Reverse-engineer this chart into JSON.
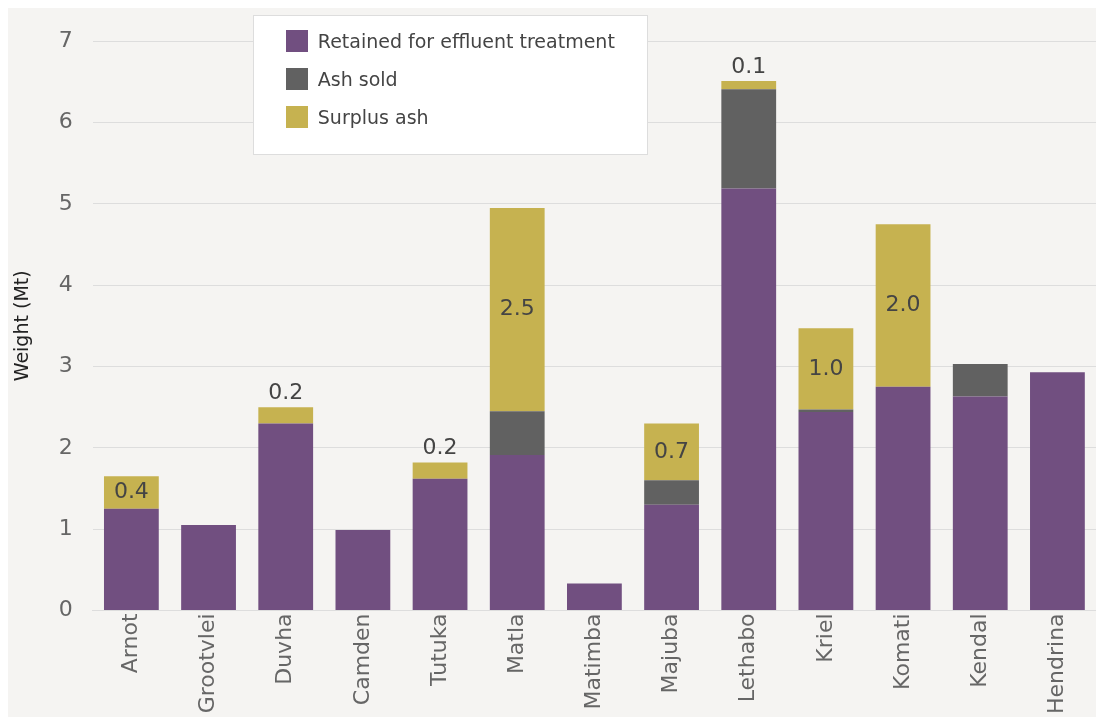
{
  "chart_data": {
    "type": "bar",
    "stacked": true,
    "ylabel": "Weight (Mt)",
    "categories": [
      "Arnot",
      "Grootvlei",
      "Duvha",
      "Camden",
      "Tutuka",
      "Matla",
      "Matimba",
      "Majuba",
      "Lethabo",
      "Kriel",
      "Komati",
      "Kendal",
      "Hendrina"
    ],
    "series": [
      {
        "name": "Retained for effluent treatment",
        "color": "#714f80",
        "values": [
          1.25,
          1.05,
          2.3,
          0.99,
          1.62,
          1.91,
          0.33,
          1.3,
          5.19,
          2.44,
          2.75,
          2.63,
          2.93
        ]
      },
      {
        "name": "Ash sold",
        "color": "#616161",
        "values": [
          null,
          null,
          null,
          null,
          null,
          0.54,
          null,
          0.3,
          1.22,
          0.03,
          null,
          0.4,
          null
        ]
      },
      {
        "name": "Surplus ash",
        "color": "#c6b250",
        "values": [
          0.4,
          null,
          0.2,
          null,
          0.2,
          2.5,
          null,
          0.7,
          0.1,
          1.0,
          2.0,
          null,
          null
        ],
        "value_labels": [
          "0.4",
          null,
          "0.2",
          null,
          "0.2",
          "2.5",
          null,
          "0.7",
          "0.1",
          "1.0",
          "2.0",
          null,
          null
        ]
      }
    ],
    "ylim": [
      0,
      7
    ],
    "yticks": [
      0,
      1,
      2,
      3,
      4,
      5,
      6,
      7
    ],
    "grid": "y",
    "legend": "top left"
  }
}
